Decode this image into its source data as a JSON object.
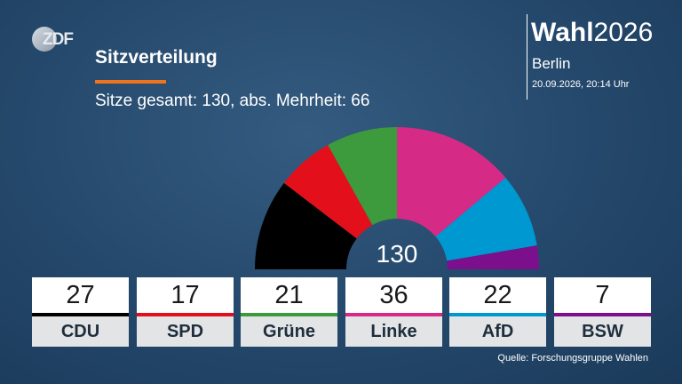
{
  "logo_text": "ZDF",
  "header": {
    "title": "Sitzverteilung",
    "subtitle": "Sitze gesamt: 130, abs. Mehrheit: 66",
    "accent_color": "#f0731e"
  },
  "brand": {
    "bold": "Wahl",
    "year": "2026",
    "city": "Berlin",
    "datetime": "20.09.2026, 20:14 Uhr"
  },
  "chart_data": {
    "type": "pie",
    "variant": "half-donut (parliament seat distribution)",
    "total_label": "130",
    "total_seats": 130,
    "majority": 66,
    "categories": [
      "CDU",
      "SPD",
      "Grüne",
      "Linke",
      "AfD",
      "BSW"
    ],
    "values": [
      27,
      17,
      21,
      36,
      22,
      7
    ],
    "colors": [
      "#000000",
      "#e3101c",
      "#3d9a3d",
      "#d52b86",
      "#0098d0",
      "#7b0f8c"
    ]
  },
  "source": "Quelle: Forschungsgruppe Wahlen"
}
